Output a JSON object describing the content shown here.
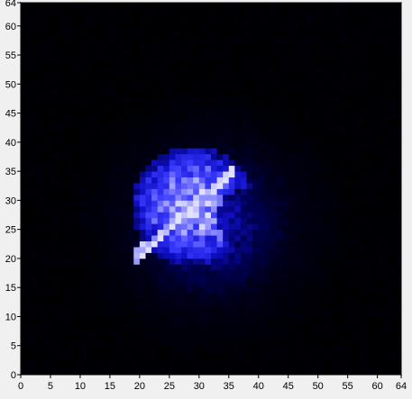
{
  "chart_data": {
    "type": "heatmap",
    "title": "",
    "xlabel": "",
    "ylabel": "",
    "xlim": [
      0,
      64
    ],
    "ylim": [
      0,
      64
    ],
    "grid": false,
    "colormap": [
      "#000000",
      "#00001a",
      "#000055",
      "#1010c8",
      "#3a3aff",
      "#8c8cff",
      "#e2e2ff"
    ],
    "x_ticks": [
      "0",
      "5",
      "10",
      "15",
      "20",
      "25",
      "30",
      "35",
      "40",
      "45",
      "50",
      "55",
      "60",
      "64"
    ],
    "y_ticks": [
      "0",
      "5",
      "10",
      "15",
      "20",
      "25",
      "30",
      "35",
      "40",
      "45",
      "50",
      "55",
      "60",
      "64"
    ],
    "grid_size": [
      64,
      64
    ],
    "blob": {
      "center": [
        32,
        26
      ],
      "radius": 18.5,
      "background_intensity": 0.05,
      "core_center": [
        29,
        29
      ],
      "core_radius": 10.5,
      "core_intensity": 0.95,
      "notch_center": [
        38,
        27
      ],
      "notch_radius": 5
    }
  }
}
